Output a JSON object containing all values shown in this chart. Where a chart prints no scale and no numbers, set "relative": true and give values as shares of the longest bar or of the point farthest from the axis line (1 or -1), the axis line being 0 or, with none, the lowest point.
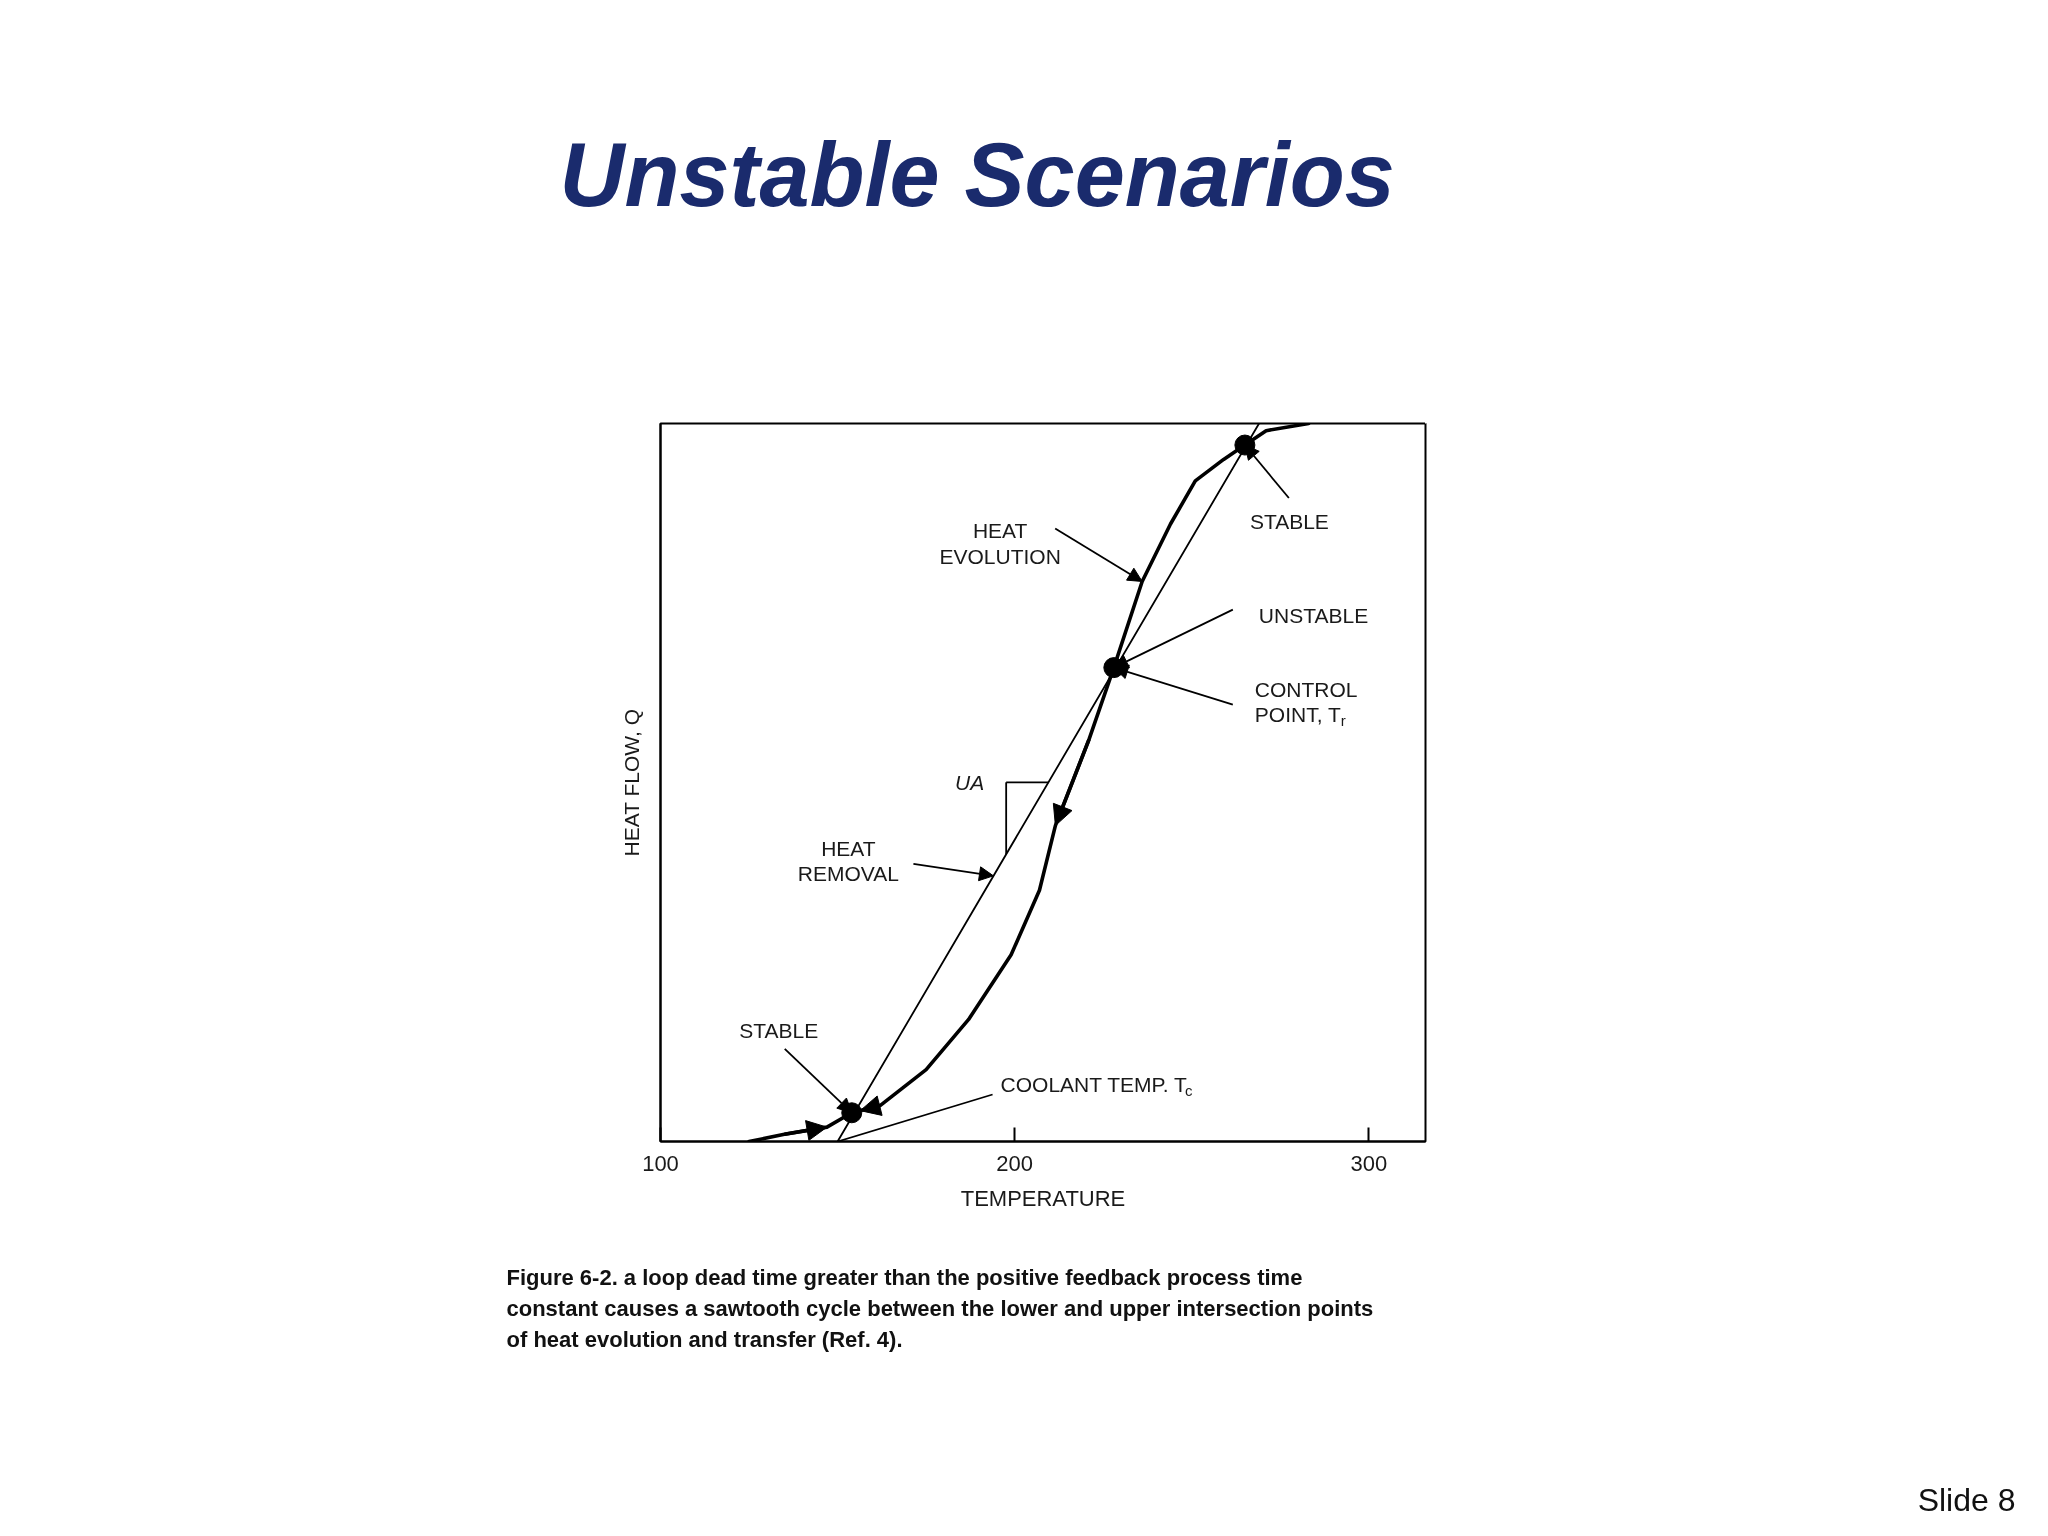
{
  "chart_data": {
    "type": "line",
    "title": "Unstable Scenarios",
    "xlabel": "TEMPERATURE",
    "ylabel": "HEAT FLOW, Q",
    "relative": true,
    "xlim": [
      100,
      316
    ],
    "xticks": [
      100,
      200,
      300
    ],
    "tick_labels": "x",
    "series": [
      {
        "color": "#000000",
        "x": [
          125,
          135,
          147,
          154,
          162,
          175,
          187,
          199,
          207,
          211.5,
          221,
          228,
          236,
          244,
          251,
          259,
          265,
          271,
          283
        ],
        "values": [
          0,
          0.01,
          0.02,
          0.04,
          0.05,
          0.1,
          0.17,
          0.26,
          0.35,
          0.44,
          0.56,
          0.66,
          0.78,
          0.86,
          0.92,
          0.95,
          0.97,
          0.99,
          1.0
        ]
      },
      {
        "color": "#000000",
        "x": [
          150,
          269
        ],
        "values": [
          0,
          1.0
        ]
      },
      {
        "type": "scatter",
        "color": "#000000",
        "marker": "circle",
        "x": [
          154,
          228,
          265
        ],
        "values": [
          0.04,
          0.66,
          0.97
        ]
      }
    ],
    "annotations": [
      {
        "text": "STABLE",
        "x": 265,
        "y": 0.97
      },
      {
        "text": "HEAT\nEVOLUTION",
        "x": 236,
        "y": 0.78
      },
      {
        "text": "UNSTABLE",
        "x": 228,
        "y": 0.66
      },
      {
        "text": "CONTROL\nPOINT, T$_{r}$",
        "x": 228,
        "y": 0.66
      },
      "UA",
      {
        "text": "HEAT\nREMOVAL",
        "x": 194,
        "y": 0.37
      },
      {
        "text": "STABLE",
        "x": 154,
        "y": 0.04
      },
      {
        "text": "COOLANT TEMP. T$_{c}$",
        "x": 150,
        "y": 0
      },
      "Figure 6-2. a loop dead time greater than the positive feedback process time constant causes a sawtooth cycle between the lower and upper intersection points of heat evolution and transfer (Ref. 4).",
      "Slide 8"
    ]
  }
}
